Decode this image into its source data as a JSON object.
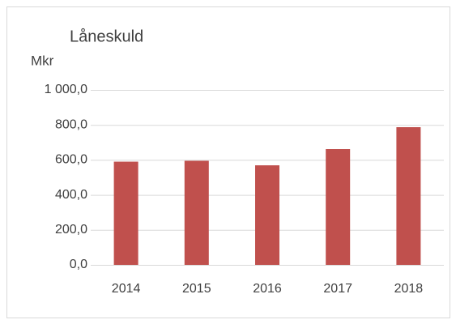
{
  "chart_data": {
    "type": "bar",
    "title": "Låneskuld",
    "y_label": "Mkr",
    "categories": [
      "2014",
      "2015",
      "2016",
      "2017",
      "2018"
    ],
    "values": [
      590,
      595,
      569,
      662,
      787
    ],
    "color": "#c0504d",
    "ylim": [
      0,
      1000
    ],
    "yticks": [
      {
        "value": 0,
        "label": "0,0"
      },
      {
        "value": 200,
        "label": "200,0"
      },
      {
        "value": 400,
        "label": "400,0"
      },
      {
        "value": 600,
        "label": "600,0"
      },
      {
        "value": 800,
        "label": "800,0"
      },
      {
        "value": 1000,
        "label": "1 000,0"
      }
    ],
    "grid": true
  }
}
